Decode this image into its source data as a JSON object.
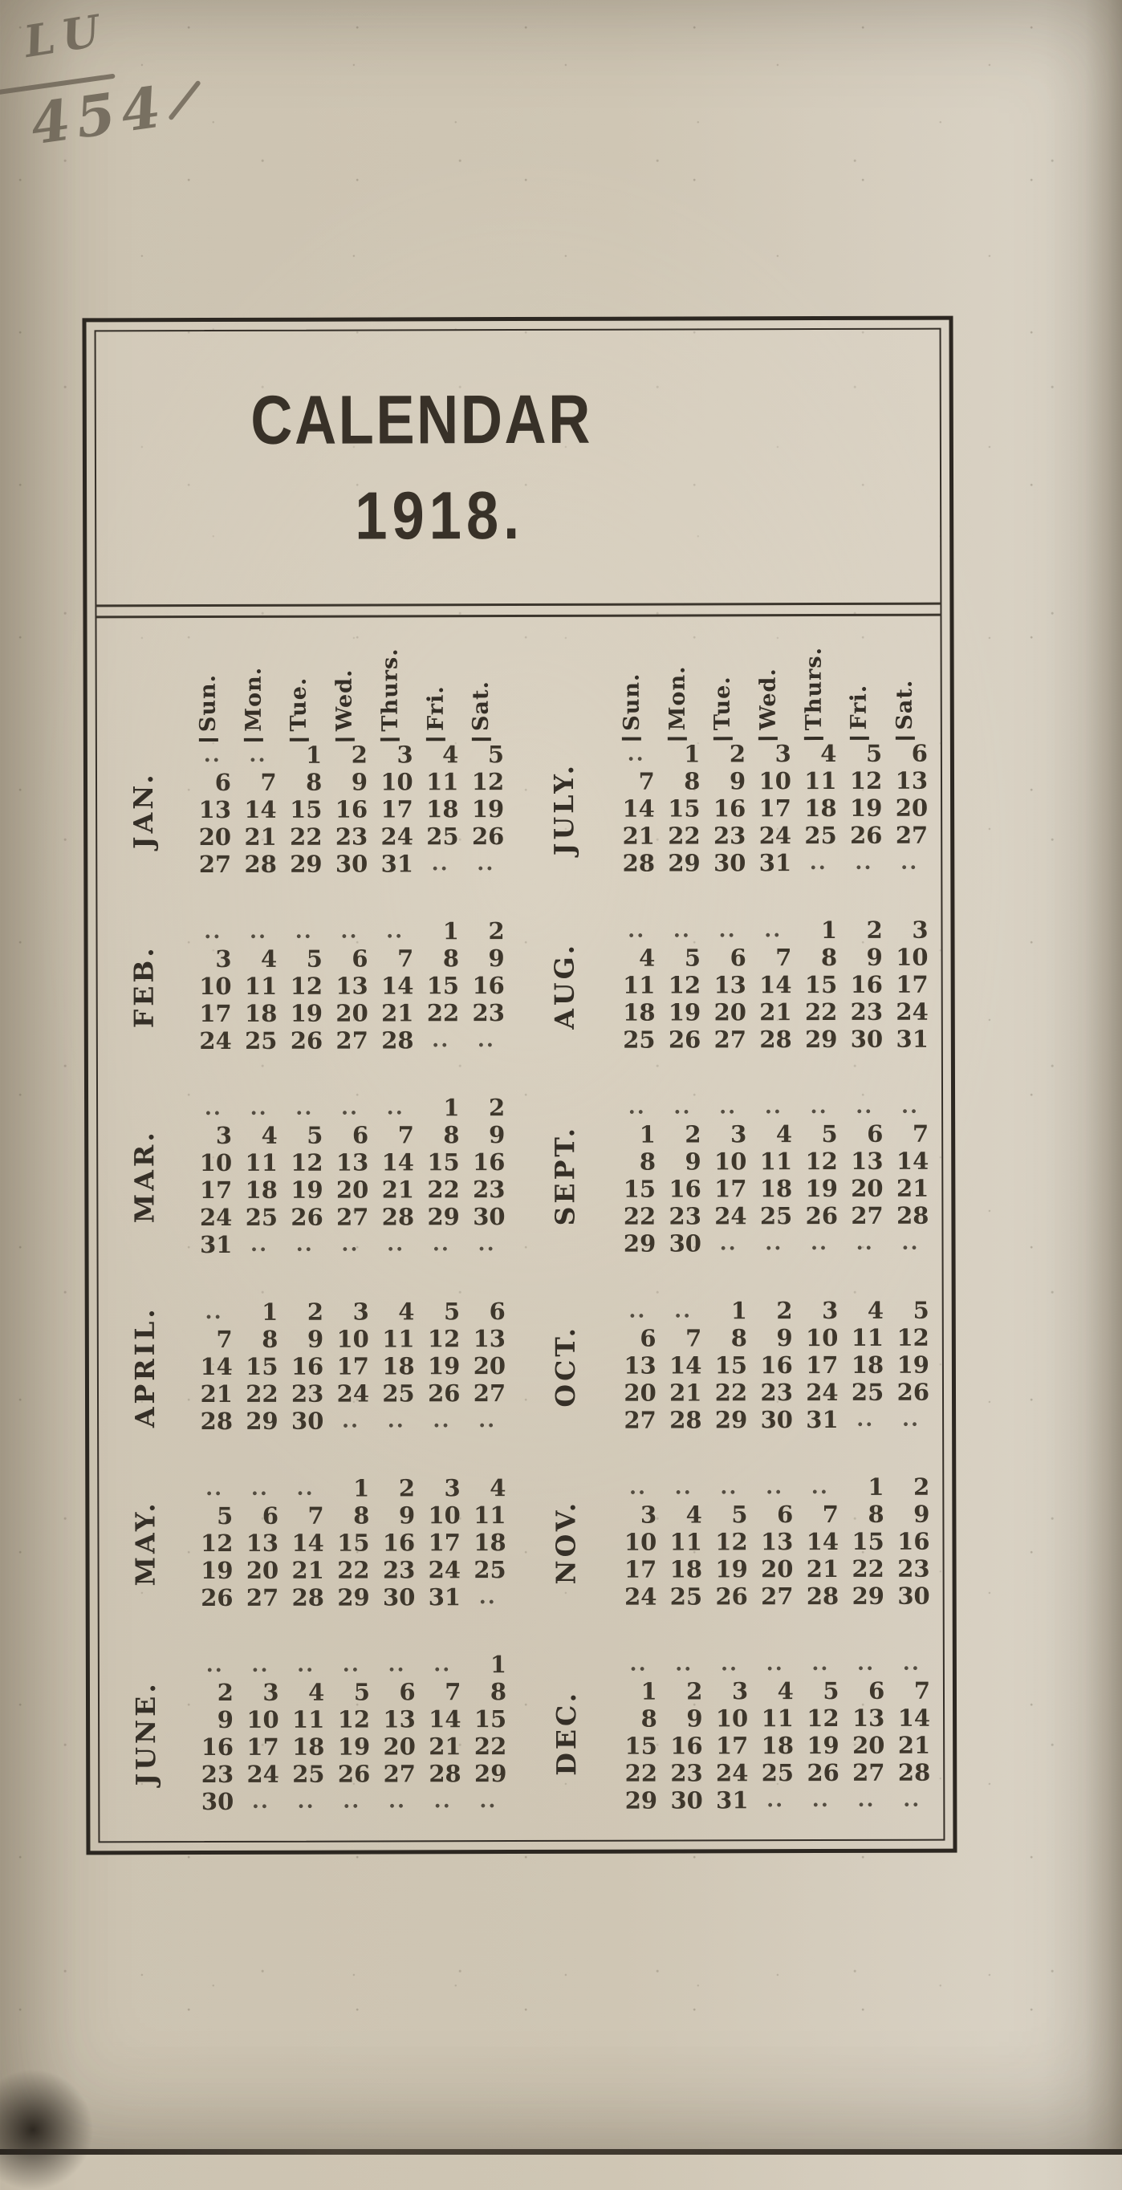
{
  "annotation": {
    "shelf_top": "LU",
    "shelf_bottom": "454"
  },
  "title": {
    "line1": "CALENDAR",
    "line2": "1918."
  },
  "colors": {
    "paper": "#cdc4b2",
    "ink": "#352f27",
    "rule": "#4e463a",
    "handwriting": "#6a6254"
  },
  "calendar": {
    "year": "1918",
    "empty_cell": "..",
    "day_headers": [
      "Sun.",
      "Mon.",
      "Tue.",
      "Wed.",
      "Thurs.",
      "Fri.",
      "Sat."
    ],
    "left_months": [
      {
        "name": "JAN.",
        "weeks": [
          [
            "..",
            "..",
            "1",
            "2",
            "3",
            "4",
            "5"
          ],
          [
            "6",
            "7",
            "8",
            "9",
            "10",
            "11",
            "12"
          ],
          [
            "13",
            "14",
            "15",
            "16",
            "17",
            "18",
            "19"
          ],
          [
            "20",
            "21",
            "22",
            "23",
            "24",
            "25",
            "26"
          ],
          [
            "27",
            "28",
            "29",
            "30",
            "31",
            "..",
            ".."
          ]
        ]
      },
      {
        "name": "FEB.",
        "weeks": [
          [
            "..",
            "..",
            "..",
            "..",
            "..",
            "1",
            "2"
          ],
          [
            "3",
            "4",
            "5",
            "6",
            "7",
            "8",
            "9"
          ],
          [
            "10",
            "11",
            "12",
            "13",
            "14",
            "15",
            "16"
          ],
          [
            "17",
            "18",
            "19",
            "20",
            "21",
            "22",
            "23"
          ],
          [
            "24",
            "25",
            "26",
            "27",
            "28",
            "..",
            ".."
          ]
        ]
      },
      {
        "name": "MAR.",
        "weeks": [
          [
            "..",
            "..",
            "..",
            "..",
            "..",
            "1",
            "2"
          ],
          [
            "3",
            "4",
            "5",
            "6",
            "7",
            "8",
            "9"
          ],
          [
            "10",
            "11",
            "12",
            "13",
            "14",
            "15",
            "16"
          ],
          [
            "17",
            "18",
            "19",
            "20",
            "21",
            "22",
            "23"
          ],
          [
            "24",
            "25",
            "26",
            "27",
            "28",
            "29",
            "30"
          ],
          [
            "31",
            "..",
            "..",
            "..",
            "..",
            "..",
            ".."
          ]
        ]
      },
      {
        "name": "APRIL.",
        "weeks": [
          [
            "..",
            "1",
            "2",
            "3",
            "4",
            "5",
            "6"
          ],
          [
            "7",
            "8",
            "9",
            "10",
            "11",
            "12",
            "13"
          ],
          [
            "14",
            "15",
            "16",
            "17",
            "18",
            "19",
            "20"
          ],
          [
            "21",
            "22",
            "23",
            "24",
            "25",
            "26",
            "27"
          ],
          [
            "28",
            "29",
            "30",
            "..",
            "..",
            "..",
            ".."
          ]
        ]
      },
      {
        "name": "MAY.",
        "weeks": [
          [
            "..",
            "..",
            "..",
            "1",
            "2",
            "3",
            "4"
          ],
          [
            "5",
            "6",
            "7",
            "8",
            "9",
            "10",
            "11"
          ],
          [
            "12",
            "13",
            "14",
            "15",
            "16",
            "17",
            "18"
          ],
          [
            "19",
            "20",
            "21",
            "22",
            "23",
            "24",
            "25"
          ],
          [
            "26",
            "27",
            "28",
            "29",
            "30",
            "31",
            ".."
          ]
        ]
      },
      {
        "name": "JUNE.",
        "weeks": [
          [
            "..",
            "..",
            "..",
            "..",
            "..",
            "..",
            "1"
          ],
          [
            "2",
            "3",
            "4",
            "5",
            "6",
            "7",
            "8"
          ],
          [
            "9",
            "10",
            "11",
            "12",
            "13",
            "14",
            "15"
          ],
          [
            "16",
            "17",
            "18",
            "19",
            "20",
            "21",
            "22"
          ],
          [
            "23",
            "24",
            "25",
            "26",
            "27",
            "28",
            "29"
          ],
          [
            "30",
            "..",
            "..",
            "..",
            "..",
            "..",
            ".."
          ]
        ]
      }
    ],
    "right_months": [
      {
        "name": "JULY.",
        "weeks": [
          [
            "..",
            "1",
            "2",
            "3",
            "4",
            "5",
            "6"
          ],
          [
            "7",
            "8",
            "9",
            "10",
            "11",
            "12",
            "13"
          ],
          [
            "14",
            "15",
            "16",
            "17",
            "18",
            "19",
            "20"
          ],
          [
            "21",
            "22",
            "23",
            "24",
            "25",
            "26",
            "27"
          ],
          [
            "28",
            "29",
            "30",
            "31",
            "..",
            "..",
            ".."
          ]
        ]
      },
      {
        "name": "AUG.",
        "weeks": [
          [
            "..",
            "..",
            "..",
            "..",
            "1",
            "2",
            "3"
          ],
          [
            "4",
            "5",
            "6",
            "7",
            "8",
            "9",
            "10"
          ],
          [
            "11",
            "12",
            "13",
            "14",
            "15",
            "16",
            "17"
          ],
          [
            "18",
            "19",
            "20",
            "21",
            "22",
            "23",
            "24"
          ],
          [
            "25",
            "26",
            "27",
            "28",
            "29",
            "30",
            "31"
          ]
        ]
      },
      {
        "name": "SEPT.",
        "weeks": [
          [
            "..",
            "..",
            "..",
            "..",
            "..",
            "..",
            ".."
          ],
          [
            "1",
            "2",
            "3",
            "4",
            "5",
            "6",
            "7"
          ],
          [
            "8",
            "9",
            "10",
            "11",
            "12",
            "13",
            "14"
          ],
          [
            "15",
            "16",
            "17",
            "18",
            "19",
            "20",
            "21"
          ],
          [
            "22",
            "23",
            "24",
            "25",
            "26",
            "27",
            "28"
          ],
          [
            "29",
            "30",
            "..",
            "..",
            "..",
            "..",
            ".."
          ]
        ]
      },
      {
        "name": "OCT.",
        "weeks": [
          [
            "..",
            "..",
            "1",
            "2",
            "3",
            "4",
            "5"
          ],
          [
            "6",
            "7",
            "8",
            "9",
            "10",
            "11",
            "12"
          ],
          [
            "13",
            "14",
            "15",
            "16",
            "17",
            "18",
            "19"
          ],
          [
            "20",
            "21",
            "22",
            "23",
            "24",
            "25",
            "26"
          ],
          [
            "27",
            "28",
            "29",
            "30",
            "31",
            "..",
            ".."
          ]
        ]
      },
      {
        "name": "NOV.",
        "weeks": [
          [
            "..",
            "..",
            "..",
            "..",
            "..",
            "1",
            "2"
          ],
          [
            "3",
            "4",
            "5",
            "6",
            "7",
            "8",
            "9"
          ],
          [
            "10",
            "11",
            "12",
            "13",
            "14",
            "15",
            "16"
          ],
          [
            "17",
            "18",
            "19",
            "20",
            "21",
            "22",
            "23"
          ],
          [
            "24",
            "25",
            "26",
            "27",
            "28",
            "29",
            "30"
          ]
        ]
      },
      {
        "name": "DEC.",
        "weeks": [
          [
            "..",
            "..",
            "..",
            "..",
            "..",
            "..",
            ".."
          ],
          [
            "1",
            "2",
            "3",
            "4",
            "5",
            "6",
            "7"
          ],
          [
            "8",
            "9",
            "10",
            "11",
            "12",
            "13",
            "14"
          ],
          [
            "15",
            "16",
            "17",
            "18",
            "19",
            "20",
            "21"
          ],
          [
            "22",
            "23",
            "24",
            "25",
            "26",
            "27",
            "28"
          ],
          [
            "29",
            "30",
            "31",
            "..",
            "..",
            "..",
            ".."
          ]
        ]
      }
    ]
  }
}
